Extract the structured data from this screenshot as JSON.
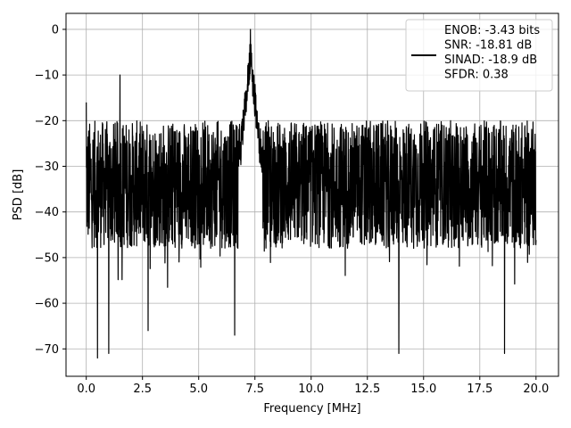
{
  "chart_data": {
    "type": "line",
    "title": "",
    "xlabel": "Frequency [MHz]",
    "ylabel": "PSD [dB]",
    "xlim": [
      -0.9,
      21.0
    ],
    "ylim": [
      -76,
      3.5
    ],
    "xticks": [
      0.0,
      2.5,
      5.0,
      7.5,
      10.0,
      12.5,
      15.0,
      17.5,
      20.0
    ],
    "xtick_labels": [
      "0.0",
      "2.5",
      "5.0",
      "7.5",
      "10.0",
      "12.5",
      "15.0",
      "17.5",
      "20.0"
    ],
    "yticks": [
      0,
      -10,
      -20,
      -30,
      -40,
      -50,
      -60,
      -70
    ],
    "ytick_labels": [
      "0",
      "−10",
      "−20",
      "−30",
      "−40",
      "−50",
      "−60",
      "−70"
    ],
    "grid": true,
    "legend_position": "top-right",
    "series": [
      {
        "name": "ENOB: -3.43 bits\nSNR: -18.81 dB\nSINAD: -18.9 dB\nSFDR: 0.38",
        "legend_lines": [
          "ENOB: -3.43 bits",
          "SNR: -18.81 dB",
          "SINAD: -18.9 dB",
          "SFDR: 0.38"
        ],
        "color": "#000000",
        "x_start": 0.0,
        "x_end": 20.0,
        "noise_floor_description": "dense noise between about -50 and -20 dB",
        "peaks": [
          {
            "x": 0.0,
            "y": -16
          },
          {
            "x": 1.5,
            "y": -10
          },
          {
            "x": 7.3,
            "y": 0
          }
        ],
        "dips": [
          {
            "x": 0.5,
            "y": -72
          },
          {
            "x": 1.0,
            "y": -71
          },
          {
            "x": 2.75,
            "y": -66
          },
          {
            "x": 6.6,
            "y": -67
          },
          {
            "x": 13.9,
            "y": -71
          },
          {
            "x": 18.6,
            "y": -71
          }
        ]
      }
    ]
  }
}
